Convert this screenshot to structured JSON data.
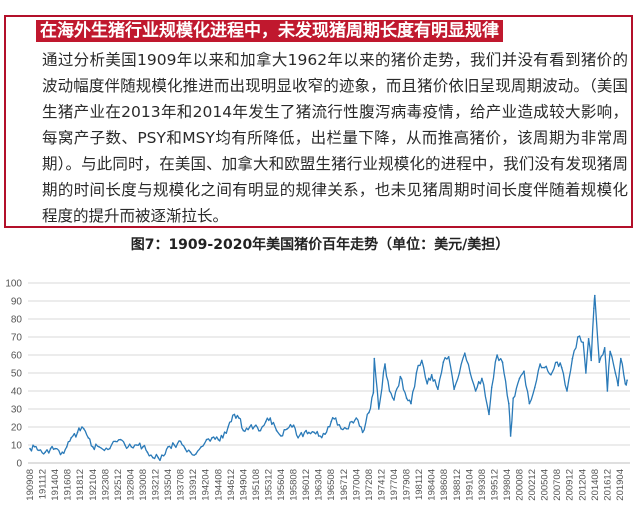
{
  "textbox": {
    "title": "在海外生猪行业规模化进程中，未发现猪周期长度有明显规律",
    "body": "通过分析美国1909年以来和加拿大1962年以来的猪价走势，我们并没有看到猪价的波动幅度伴随规模化推进而出现明显收窄的迹象，而且猪价依旧呈现周期波动。（美国生猪产业在2013年和2014年发生了猪流行性腹泻病毒疫情，给产业造成较大影响，每窝产子数、PSY和MSY均有所降低，出栏量下降，从而推高猪价，该周期为非常周期）。与此同时，在美国、加拿大和欧盟生猪行业规模化的进程中，我们没有发现猪周期的时间长度与规模化之间有明显的规律关系，也未见猪周期时间长度伴随着规模化程度的提升而被逐渐拉长。"
  },
  "figure": {
    "caption": "图7：1909-2020年美国猪价百年走势（单位：美元/美担）"
  },
  "colors": {
    "accent": "#c0182e",
    "series": "#2a7ab8",
    "grid": "#d9d9d9"
  },
  "chart_data": {
    "type": "line",
    "title": "",
    "xlabel": "",
    "ylabel": "",
    "ylim": [
      0,
      100
    ],
    "yticks": [
      0,
      10,
      20,
      30,
      40,
      50,
      60,
      70,
      80,
      90,
      100
    ],
    "grid": "horizontal",
    "legend": "none",
    "x_tick_labels": [
      "190908",
      "191112",
      "191404",
      "191608",
      "191812",
      "192104",
      "192308",
      "192512",
      "192804",
      "193008",
      "193212",
      "193504",
      "193708",
      "193912",
      "194204",
      "194408",
      "194612",
      "194904",
      "195108",
      "195312",
      "195604",
      "195808",
      "196012",
      "196304",
      "196508",
      "196712",
      "197004",
      "197208",
      "197412",
      "197704",
      "197908",
      "198112",
      "198404",
      "198608",
      "198812",
      "199104",
      "199308",
      "199512",
      "199804",
      "200008",
      "200212",
      "200504",
      "200708",
      "200912",
      "201204",
      "201408",
      "201612",
      "201904"
    ],
    "series": [
      {
        "points": [
          [
            "1909-08",
            8
          ],
          [
            "1910-06",
            9
          ],
          [
            "1911-04",
            7
          ],
          [
            "1912-06",
            6
          ],
          [
            "1913-06",
            8
          ],
          [
            "1914-04",
            8
          ],
          [
            "1915-08",
            6
          ],
          [
            "1916-06",
            9
          ],
          [
            "1917-04",
            14
          ],
          [
            "1918-06",
            17
          ],
          [
            "1918-12",
            18
          ],
          [
            "1919-08",
            19
          ],
          [
            "1920-06",
            14
          ],
          [
            "1921-04",
            9
          ],
          [
            "1922-06",
            9
          ],
          [
            "1923-06",
            7
          ],
          [
            "1924-06",
            8
          ],
          [
            "1925-06",
            12
          ],
          [
            "1926-06",
            13
          ],
          [
            "1927-04",
            10
          ],
          [
            "1928-06",
            9
          ],
          [
            "1929-06",
            10
          ],
          [
            "1930-08",
            9
          ],
          [
            "1931-06",
            6
          ],
          [
            "1932-06",
            3
          ],
          [
            "1933-06",
            3
          ],
          [
            "1934-06",
            4
          ],
          [
            "1935-04",
            9
          ],
          [
            "1936-06",
            10
          ],
          [
            "1937-08",
            12
          ],
          [
            "1938-06",
            8
          ],
          [
            "1939-06",
            6
          ],
          [
            "1940-06",
            5
          ],
          [
            "1941-06",
            9
          ],
          [
            "1942-06",
            13
          ],
          [
            "1943-06",
            14
          ],
          [
            "1944-08",
            13
          ],
          [
            "1945-06",
            14
          ],
          [
            "1946-06",
            20
          ],
          [
            "1947-08",
            27
          ],
          [
            "1948-06",
            25
          ],
          [
            "1949-04",
            18
          ],
          [
            "1950-06",
            20
          ],
          [
            "1951-08",
            21
          ],
          [
            "1952-06",
            18
          ],
          [
            "1953-06",
            23
          ],
          [
            "1954-04",
            25
          ],
          [
            "1955-06",
            18
          ],
          [
            "1956-04",
            15
          ],
          [
            "1957-06",
            19
          ],
          [
            "1958-08",
            21
          ],
          [
            "1959-06",
            14
          ],
          [
            "1960-12",
            18
          ],
          [
            "1961-06",
            17
          ],
          [
            "1962-06",
            17
          ],
          [
            "1963-04",
            15
          ],
          [
            "1964-06",
            16
          ],
          [
            "1965-08",
            23
          ],
          [
            "1966-06",
            25
          ],
          [
            "1967-06",
            19
          ],
          [
            "1968-06",
            19
          ],
          [
            "1969-06",
            23
          ],
          [
            "1970-04",
            25
          ],
          [
            "1971-06",
            17
          ],
          [
            "1972-08",
            28
          ],
          [
            "1973-06",
            39
          ],
          [
            "1973-08",
            58
          ],
          [
            "1974-06",
            30
          ],
          [
            "1975-08",
            55
          ],
          [
            "1976-06",
            40
          ],
          [
            "1977-04",
            35
          ],
          [
            "1978-06",
            48
          ],
          [
            "1979-08",
            36
          ],
          [
            "1980-06",
            33
          ],
          [
            "1981-06",
            50
          ],
          [
            "1982-06",
            57
          ],
          [
            "1983-06",
            44
          ],
          [
            "1984-04",
            49
          ],
          [
            "1985-06",
            41
          ],
          [
            "1986-06",
            56
          ],
          [
            "1987-06",
            59
          ],
          [
            "1988-06",
            41
          ],
          [
            "1989-06",
            50
          ],
          [
            "1990-06",
            61
          ],
          [
            "1991-06",
            50
          ],
          [
            "1992-06",
            40
          ],
          [
            "1993-08",
            47
          ],
          [
            "1994-12",
            27
          ],
          [
            "1995-06",
            42
          ],
          [
            "1996-06",
            60
          ],
          [
            "1997-06",
            56
          ],
          [
            "1998-08",
            33
          ],
          [
            "1998-12",
            15
          ],
          [
            "1999-06",
            36
          ],
          [
            "2000-08",
            47
          ],
          [
            "2001-06",
            51
          ],
          [
            "2002-06",
            33
          ],
          [
            "2003-06",
            42
          ],
          [
            "2004-06",
            55
          ],
          [
            "2005-04",
            53
          ],
          [
            "2006-06",
            49
          ],
          [
            "2007-08",
            56
          ],
          [
            "2008-06",
            53
          ],
          [
            "2009-06",
            40
          ],
          [
            "2010-06",
            58
          ],
          [
            "2011-06",
            70
          ],
          [
            "2012-06",
            67
          ],
          [
            "2012-12",
            50
          ],
          [
            "2013-06",
            69
          ],
          [
            "2013-12",
            57
          ],
          [
            "2014-06",
            86
          ],
          [
            "2014-08",
            93
          ],
          [
            "2015-06",
            56
          ],
          [
            "2016-06",
            64
          ],
          [
            "2016-12",
            40
          ],
          [
            "2017-06",
            62
          ],
          [
            "2018-06",
            50
          ],
          [
            "2018-12",
            43
          ],
          [
            "2019-06",
            58
          ],
          [
            "2020-04",
            44
          ],
          [
            "2020-08",
            46
          ]
        ]
      }
    ]
  }
}
